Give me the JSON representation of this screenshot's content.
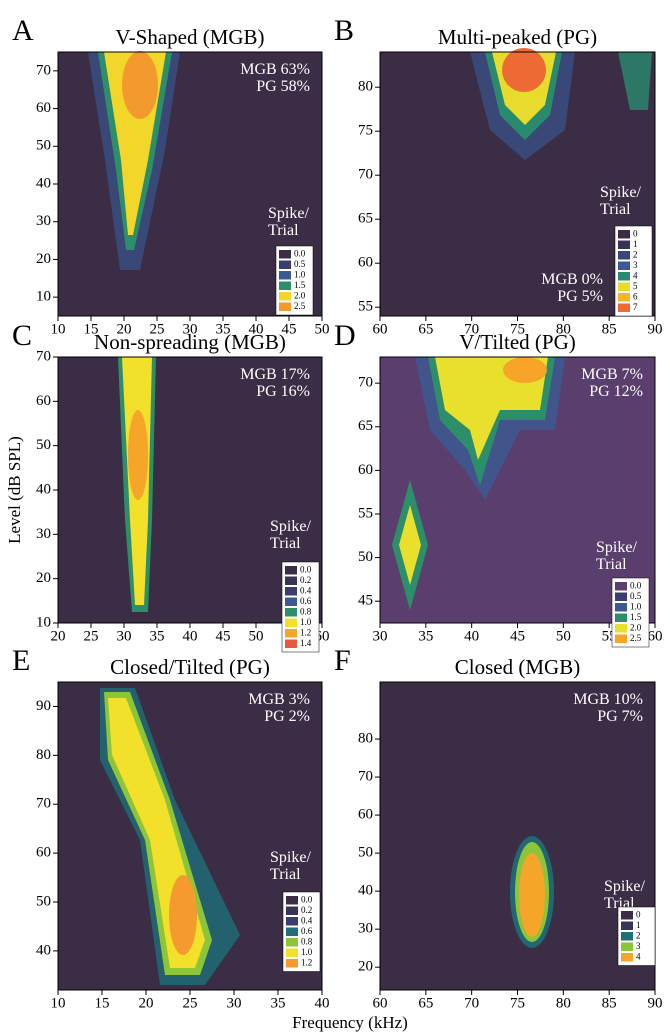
{
  "y_label": "Level (dB SPL)",
  "x_label": "Frequency (kHz)",
  "chart_data": [
    {
      "type": "contour",
      "panel_label": "A",
      "title": "V-Shaped (MGB)",
      "xlim": [
        10,
        50
      ],
      "xticks": [
        10,
        15,
        20,
        25,
        30,
        35,
        40,
        45,
        50
      ],
      "ylim": [
        5,
        75
      ],
      "yticks": [
        10,
        20,
        30,
        40,
        50,
        60,
        70
      ],
      "annotations": [
        "MGB 63%",
        "PG 58%"
      ],
      "legend_title": [
        "Spike/",
        "Trial"
      ],
      "legend_levels": [
        "0.0",
        "0.5",
        "1.0",
        "1.5",
        "2.0",
        "2.5"
      ],
      "legend_colors": [
        "#3b2d45",
        "#3a3d6e",
        "#3b5a92",
        "#2c8f6a",
        "#f2d72a",
        "#f29a2e"
      ]
    },
    {
      "type": "contour",
      "panel_label": "B",
      "title": "Multi-peaked (PG)",
      "xlim": [
        60,
        90
      ],
      "xticks": [
        60,
        65,
        70,
        75,
        80,
        85,
        90
      ],
      "ylim": [
        54,
        84
      ],
      "yticks": [
        55,
        60,
        65,
        70,
        75,
        80
      ],
      "annotations": [
        "MGB 0%",
        "PG 5%"
      ],
      "legend_title": [
        "Spike/",
        "Trial"
      ],
      "legend_levels": [
        "0",
        "1",
        "2",
        "3",
        "4",
        "5",
        "6",
        "7"
      ],
      "legend_colors": [
        "#3b2d45",
        "#3a3358",
        "#3b4680",
        "#3b5a92",
        "#2a8a6e",
        "#e7dc2c",
        "#f5b52a",
        "#ee6a35"
      ]
    },
    {
      "type": "contour",
      "panel_label": "C",
      "title": "Non-spreading (MGB)",
      "xlim": [
        20,
        60
      ],
      "xticks": [
        20,
        25,
        30,
        35,
        40,
        45,
        50,
        55,
        60
      ],
      "ylim": [
        10,
        70
      ],
      "yticks": [
        10,
        20,
        30,
        40,
        50,
        60,
        70
      ],
      "annotations": [
        "MGB 17%",
        "PG 16%"
      ],
      "legend_title": [
        "Spike/",
        "Trial"
      ],
      "legend_levels": [
        "0.0",
        "0.2",
        "0.4",
        "0.6",
        "0.8",
        "1.0",
        "1.2",
        "1.4"
      ],
      "legend_colors": [
        "#3b2d45",
        "#3a3358",
        "#3a3d6e",
        "#3b5a92",
        "#2c8f6a",
        "#f2e02a",
        "#f5a52a",
        "#e8583a"
      ]
    },
    {
      "type": "contour",
      "panel_label": "D",
      "title": "V/Tilted (PG)",
      "xlim": [
        30,
        60
      ],
      "xticks": [
        30,
        35,
        40,
        45,
        50,
        55,
        60
      ],
      "ylim": [
        42.5,
        73
      ],
      "yticks": [
        45,
        50,
        55,
        60,
        65,
        70
      ],
      "annotations": [
        "MGB 7%",
        "PG 12%"
      ],
      "legend_title": [
        "Spike/",
        "Trial"
      ],
      "legend_levels": [
        "0.0",
        "0.5",
        "1.0",
        "1.5",
        "2.0",
        "2.5"
      ],
      "legend_colors": [
        "#5a3f6e",
        "#3a3d6e",
        "#3b5a92",
        "#2c8f6a",
        "#e8e02c",
        "#f7a428"
      ]
    },
    {
      "type": "contour",
      "panel_label": "E",
      "title": "Closed/Tilted (PG)",
      "xlim": [
        10,
        40
      ],
      "xticks": [
        10,
        15,
        20,
        25,
        30,
        35,
        40
      ],
      "ylim": [
        32,
        95
      ],
      "yticks": [
        40,
        50,
        60,
        70,
        80,
        90
      ],
      "annotations": [
        "MGB 3%",
        "PG 2%"
      ],
      "legend_title": [
        "Spike/",
        "Trial"
      ],
      "legend_levels": [
        "0.0",
        "0.2",
        "0.4",
        "0.6",
        "0.8",
        "1.0",
        "1.2"
      ],
      "legend_colors": [
        "#3b2d45",
        "#3a3358",
        "#3a3d6e",
        "#1f6e78",
        "#8cc43a",
        "#f2e02a",
        "#f59a2e"
      ]
    },
    {
      "type": "contour",
      "panel_label": "F",
      "title": "Closed (MGB)",
      "xlim": [
        60,
        90
      ],
      "xticks": [
        60,
        65,
        70,
        75,
        80,
        85,
        90
      ],
      "ylim": [
        14,
        95
      ],
      "yticks": [
        20,
        30,
        40,
        50,
        60,
        70,
        80
      ],
      "annotations": [
        "MGB 10%",
        "PG 7%"
      ],
      "legend_title": [
        "Spike/",
        "Trial"
      ],
      "legend_levels": [
        "0",
        "1",
        "2",
        "3",
        "4"
      ],
      "legend_colors": [
        "#3b2d45",
        "#3a3358",
        "#1f6e78",
        "#8cc43a",
        "#f5a52a"
      ]
    }
  ]
}
